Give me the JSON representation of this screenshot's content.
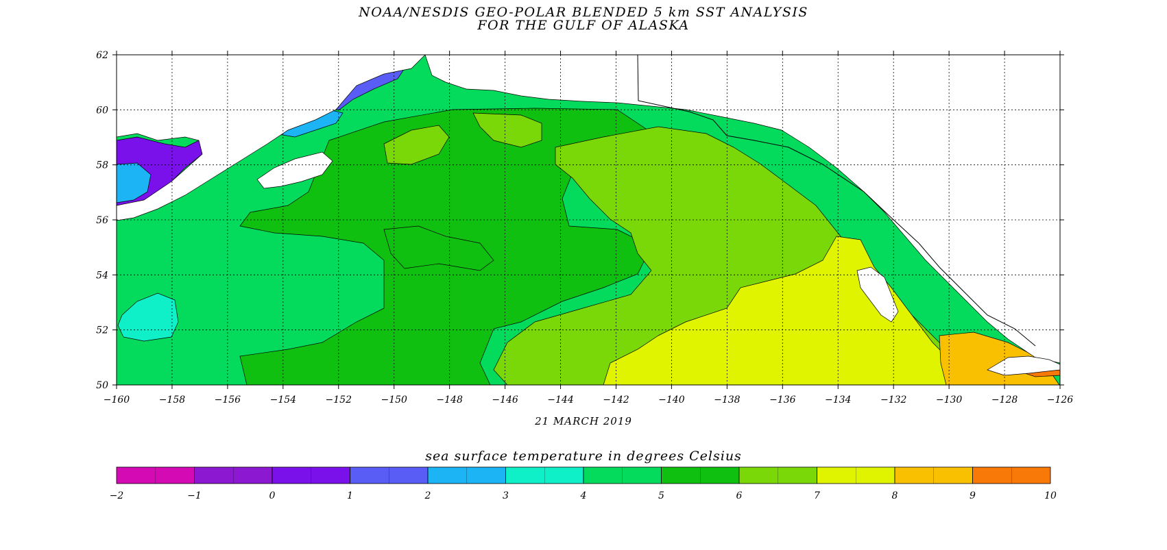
{
  "map": {
    "title_line1": "NOAA/NESDIS GEO-POLAR BLENDED 5 km SST ANALYSIS",
    "title_line2": "FOR THE GULF OF ALASKA",
    "date": "21 MARCH 2019",
    "lon_ticks": [
      "-160",
      "-158",
      "-156",
      "-154",
      "-152",
      "-150",
      "-148",
      "-146",
      "-144",
      "-142",
      "-140",
      "-138",
      "-136",
      "-134",
      "-132",
      "-130",
      "-128",
      "-126"
    ],
    "lat_ticks": [
      "50",
      "52",
      "54",
      "56",
      "58",
      "60",
      "62"
    ],
    "lon_range": [
      -160,
      -126
    ],
    "lat_range": [
      50,
      62
    ],
    "grid": "dotted",
    "land_color": "#ffffff"
  },
  "colorbar": {
    "title": "sea surface temperature in degrees Celsius",
    "labels": [
      "-2",
      "-1",
      "0",
      "1",
      "2",
      "3",
      "4",
      "5",
      "6",
      "7",
      "8",
      "9",
      "10"
    ],
    "colors": [
      "#d40ab4",
      "#8c18d2",
      "#7a10ea",
      "#5a5cf6",
      "#1cb4f4",
      "#10f0c8",
      "#04da5c",
      "#10c010",
      "#7ad808",
      "#e0f400",
      "#f8c000",
      "#f87808"
    ]
  }
}
